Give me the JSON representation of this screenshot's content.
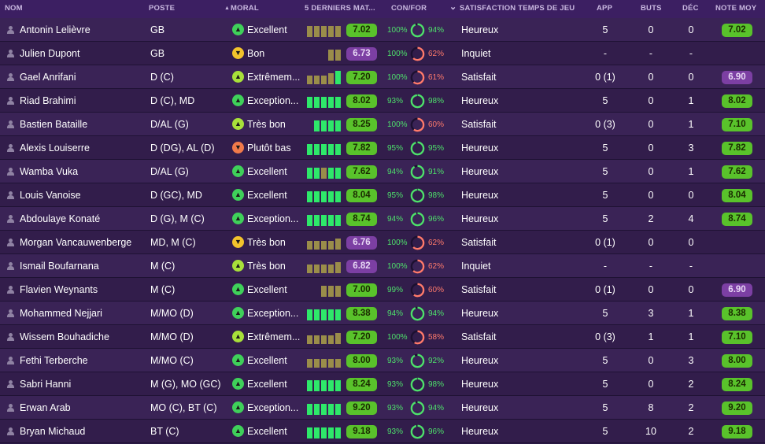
{
  "header": {
    "nom": "NOM",
    "poste": "POSTE",
    "moral": "MORAL",
    "derniers": "5 DERNIERS MAT...",
    "confor": "CON/FOR",
    "satisfaction": "SATISFACTION TEMPS DE JEU",
    "app": "APP",
    "buts": "BUTS",
    "dec": "DÉC",
    "note": "NOTE MOY",
    "moral_sort_glyph": "▲",
    "satisfaction_sort_glyph": "⌄"
  },
  "colors": {
    "green": "#59c22b",
    "purple": "#7c3fa3",
    "pct_good": "#4ee06b",
    "pct_bad": "#ff7a6b"
  },
  "players": [
    {
      "name": "Antonin Lelièvre",
      "pos": "GB",
      "moral": "Excellent",
      "moral_level": "green",
      "form": [
        4,
        4,
        4,
        4,
        4
      ],
      "form_color": [
        "o",
        "o",
        "o",
        "o",
        "o"
      ],
      "rating": "7.02",
      "rating_color": "g",
      "con": "100%",
      "con_bad": false,
      "for": "94%",
      "for_pct": 94,
      "for_bad": false,
      "sat": "Heureux",
      "app": "5",
      "buts": "0",
      "dec": "0",
      "note": "7.02",
      "note_color": "g"
    },
    {
      "name": "Julien Dupont",
      "pos": "GB",
      "moral": "Bon",
      "moral_level": "yellow",
      "form": [
        0,
        0,
        0,
        4,
        4
      ],
      "form_color": [
        "o",
        "o",
        "o",
        "o",
        "o"
      ],
      "rating": "6.73",
      "rating_color": "pu",
      "con": "100%",
      "con_bad": false,
      "for": "62%",
      "for_pct": 62,
      "for_bad": true,
      "sat": "Inquiet",
      "app": "-",
      "buts": "-",
      "dec": "-",
      "note": "",
      "note_color": ""
    },
    {
      "name": "Gael Anrifani",
      "pos": "D (C)",
      "moral": "Extrêmem...",
      "moral_level": "lime",
      "form": [
        3,
        3,
        3,
        4,
        5
      ],
      "form_color": [
        "o",
        "o",
        "o",
        "o",
        "g"
      ],
      "rating": "7.20",
      "rating_color": "g",
      "con": "100%",
      "con_bad": false,
      "for": "61%",
      "for_pct": 61,
      "for_bad": true,
      "sat": "Satisfait",
      "app": "0 (1)",
      "buts": "0",
      "dec": "0",
      "note": "6.90",
      "note_color": "pu"
    },
    {
      "name": "Riad Brahimi",
      "pos": "D (C), MD",
      "moral": "Exception...",
      "moral_level": "green",
      "form": [
        4,
        4,
        4,
        4,
        4
      ],
      "form_color": [
        "g",
        "g",
        "g",
        "g",
        "g"
      ],
      "rating": "8.02",
      "rating_color": "g",
      "con": "93%",
      "con_bad": false,
      "for": "98%",
      "for_pct": 98,
      "for_bad": false,
      "sat": "Heureux",
      "app": "5",
      "buts": "0",
      "dec": "1",
      "note": "8.02",
      "note_color": "g"
    },
    {
      "name": "Bastien Bataille",
      "pos": "D/AL (G)",
      "moral": "Très bon",
      "moral_level": "lime",
      "form": [
        0,
        4,
        4,
        4,
        4
      ],
      "form_color": [
        "g",
        "g",
        "g",
        "g",
        "g"
      ],
      "rating": "8.25",
      "rating_color": "g",
      "con": "100%",
      "con_bad": false,
      "for": "60%",
      "for_pct": 60,
      "for_bad": true,
      "sat": "Satisfait",
      "app": "0 (3)",
      "buts": "0",
      "dec": "1",
      "note": "7.10",
      "note_color": "g"
    },
    {
      "name": "Alexis Louiserre",
      "pos": "D (DG), AL (D)",
      "moral": "Plutôt bas",
      "moral_level": "orange",
      "form": [
        4,
        4,
        4,
        4,
        4
      ],
      "form_color": [
        "g",
        "g",
        "g",
        "g",
        "g"
      ],
      "rating": "7.82",
      "rating_color": "g",
      "con": "95%",
      "con_bad": false,
      "for": "95%",
      "for_pct": 95,
      "for_bad": false,
      "sat": "Heureux",
      "app": "5",
      "buts": "0",
      "dec": "3",
      "note": "7.82",
      "note_color": "g"
    },
    {
      "name": "Wamba Vuka",
      "pos": "D/AL (G)",
      "moral": "Excellent",
      "moral_level": "green",
      "form": [
        4,
        4,
        4,
        4,
        4
      ],
      "form_color": [
        "g",
        "g",
        "o",
        "g",
        "g"
      ],
      "rating": "7.62",
      "rating_color": "g",
      "con": "94%",
      "con_bad": false,
      "for": "91%",
      "for_pct": 91,
      "for_bad": false,
      "sat": "Heureux",
      "app": "5",
      "buts": "0",
      "dec": "1",
      "note": "7.62",
      "note_color": "g"
    },
    {
      "name": "Louis Vanoise",
      "pos": "D (GC), MD",
      "moral": "Excellent",
      "moral_level": "green",
      "form": [
        4,
        4,
        4,
        4,
        4
      ],
      "form_color": [
        "g",
        "g",
        "g",
        "g",
        "g"
      ],
      "rating": "8.04",
      "rating_color": "g",
      "con": "95%",
      "con_bad": false,
      "for": "98%",
      "for_pct": 98,
      "for_bad": false,
      "sat": "Heureux",
      "app": "5",
      "buts": "0",
      "dec": "0",
      "note": "8.04",
      "note_color": "g"
    },
    {
      "name": "Abdoulaye Konaté",
      "pos": "D (G), M (C)",
      "moral": "Exception...",
      "moral_level": "green",
      "form": [
        4,
        4,
        4,
        4,
        4
      ],
      "form_color": [
        "g",
        "g",
        "g",
        "g",
        "g"
      ],
      "rating": "8.74",
      "rating_color": "g",
      "con": "94%",
      "con_bad": false,
      "for": "96%",
      "for_pct": 96,
      "for_bad": false,
      "sat": "Heureux",
      "app": "5",
      "buts": "2",
      "dec": "4",
      "note": "8.74",
      "note_color": "g"
    },
    {
      "name": "Morgan Vancauwenberge",
      "pos": "MD, M (C)",
      "moral": "Très bon",
      "moral_level": "yellow",
      "form": [
        3,
        3,
        3,
        3,
        4
      ],
      "form_color": [
        "o",
        "o",
        "o",
        "o",
        "o"
      ],
      "rating": "6.76",
      "rating_color": "pu",
      "con": "100%",
      "con_bad": false,
      "for": "62%",
      "for_pct": 62,
      "for_bad": true,
      "sat": "Satisfait",
      "app": "0 (1)",
      "buts": "0",
      "dec": "0",
      "note": "",
      "note_color": ""
    },
    {
      "name": "Ismail Boufarnana",
      "pos": "M (C)",
      "moral": "Très bon",
      "moral_level": "lime",
      "form": [
        3,
        3,
        3,
        3,
        4
      ],
      "form_color": [
        "o",
        "o",
        "o",
        "o",
        "o"
      ],
      "rating": "6.82",
      "rating_color": "pu",
      "con": "100%",
      "con_bad": false,
      "for": "62%",
      "for_pct": 62,
      "for_bad": true,
      "sat": "Inquiet",
      "app": "-",
      "buts": "-",
      "dec": "-",
      "note": "",
      "note_color": ""
    },
    {
      "name": "Flavien Weynants",
      "pos": "M (C)",
      "moral": "Excellent",
      "moral_level": "green",
      "form": [
        0,
        0,
        4,
        4,
        4
      ],
      "form_color": [
        "o",
        "o",
        "o",
        "o",
        "o"
      ],
      "rating": "7.00",
      "rating_color": "g",
      "con": "99%",
      "con_bad": false,
      "for": "60%",
      "for_pct": 60,
      "for_bad": true,
      "sat": "Satisfait",
      "app": "0 (1)",
      "buts": "0",
      "dec": "0",
      "note": "6.90",
      "note_color": "pu"
    },
    {
      "name": "Mohammed Nejjari",
      "pos": "M/MO (D)",
      "moral": "Exception...",
      "moral_level": "green",
      "form": [
        4,
        4,
        4,
        4,
        4
      ],
      "form_color": [
        "g",
        "g",
        "g",
        "g",
        "g"
      ],
      "rating": "8.38",
      "rating_color": "g",
      "con": "94%",
      "con_bad": false,
      "for": "94%",
      "for_pct": 94,
      "for_bad": false,
      "sat": "Heureux",
      "app": "5",
      "buts": "3",
      "dec": "1",
      "note": "8.38",
      "note_color": "g"
    },
    {
      "name": "Wissem Bouhadiche",
      "pos": "M/MO (D)",
      "moral": "Extrêmem...",
      "moral_level": "lime",
      "form": [
        3,
        3,
        3,
        3,
        4
      ],
      "form_color": [
        "o",
        "o",
        "o",
        "o",
        "o"
      ],
      "rating": "7.20",
      "rating_color": "g",
      "con": "100%",
      "con_bad": false,
      "for": "58%",
      "for_pct": 58,
      "for_bad": true,
      "sat": "Satisfait",
      "app": "0 (3)",
      "buts": "1",
      "dec": "1",
      "note": "7.10",
      "note_color": "g"
    },
    {
      "name": "Fethi Terberche",
      "pos": "M/MO (C)",
      "moral": "Excellent",
      "moral_level": "green",
      "form": [
        3,
        3,
        3,
        3,
        3
      ],
      "form_color": [
        "o",
        "o",
        "o",
        "o",
        "o"
      ],
      "rating": "8.00",
      "rating_color": "g",
      "con": "93%",
      "con_bad": false,
      "for": "92%",
      "for_pct": 92,
      "for_bad": false,
      "sat": "Heureux",
      "app": "5",
      "buts": "0",
      "dec": "3",
      "note": "8.00",
      "note_color": "g"
    },
    {
      "name": "Sabri Hanni",
      "pos": "M (G), MO (GC)",
      "moral": "Excellent",
      "moral_level": "green",
      "form": [
        4,
        4,
        4,
        4,
        4
      ],
      "form_color": [
        "g",
        "g",
        "g",
        "g",
        "g"
      ],
      "rating": "8.24",
      "rating_color": "g",
      "con": "93%",
      "con_bad": false,
      "for": "98%",
      "for_pct": 98,
      "for_bad": false,
      "sat": "Heureux",
      "app": "5",
      "buts": "0",
      "dec": "2",
      "note": "8.24",
      "note_color": "g"
    },
    {
      "name": "Erwan Arab",
      "pos": "MO (C), BT (C)",
      "moral": "Exception...",
      "moral_level": "green",
      "form": [
        4,
        4,
        4,
        4,
        4
      ],
      "form_color": [
        "g",
        "g",
        "g",
        "g",
        "g"
      ],
      "rating": "9.20",
      "rating_color": "g",
      "con": "93%",
      "con_bad": false,
      "for": "94%",
      "for_pct": 94,
      "for_bad": false,
      "sat": "Heureux",
      "app": "5",
      "buts": "8",
      "dec": "2",
      "note": "9.20",
      "note_color": "g"
    },
    {
      "name": "Bryan Michaud",
      "pos": "BT (C)",
      "moral": "Excellent",
      "moral_level": "green",
      "form": [
        4,
        4,
        4,
        4,
        4
      ],
      "form_color": [
        "g",
        "g",
        "g",
        "g",
        "g"
      ],
      "rating": "9.18",
      "rating_color": "g",
      "con": "93%",
      "con_bad": false,
      "for": "96%",
      "for_pct": 96,
      "for_bad": false,
      "sat": "Heureux",
      "app": "5",
      "buts": "10",
      "dec": "2",
      "note": "9.18",
      "note_color": "g"
    }
  ]
}
